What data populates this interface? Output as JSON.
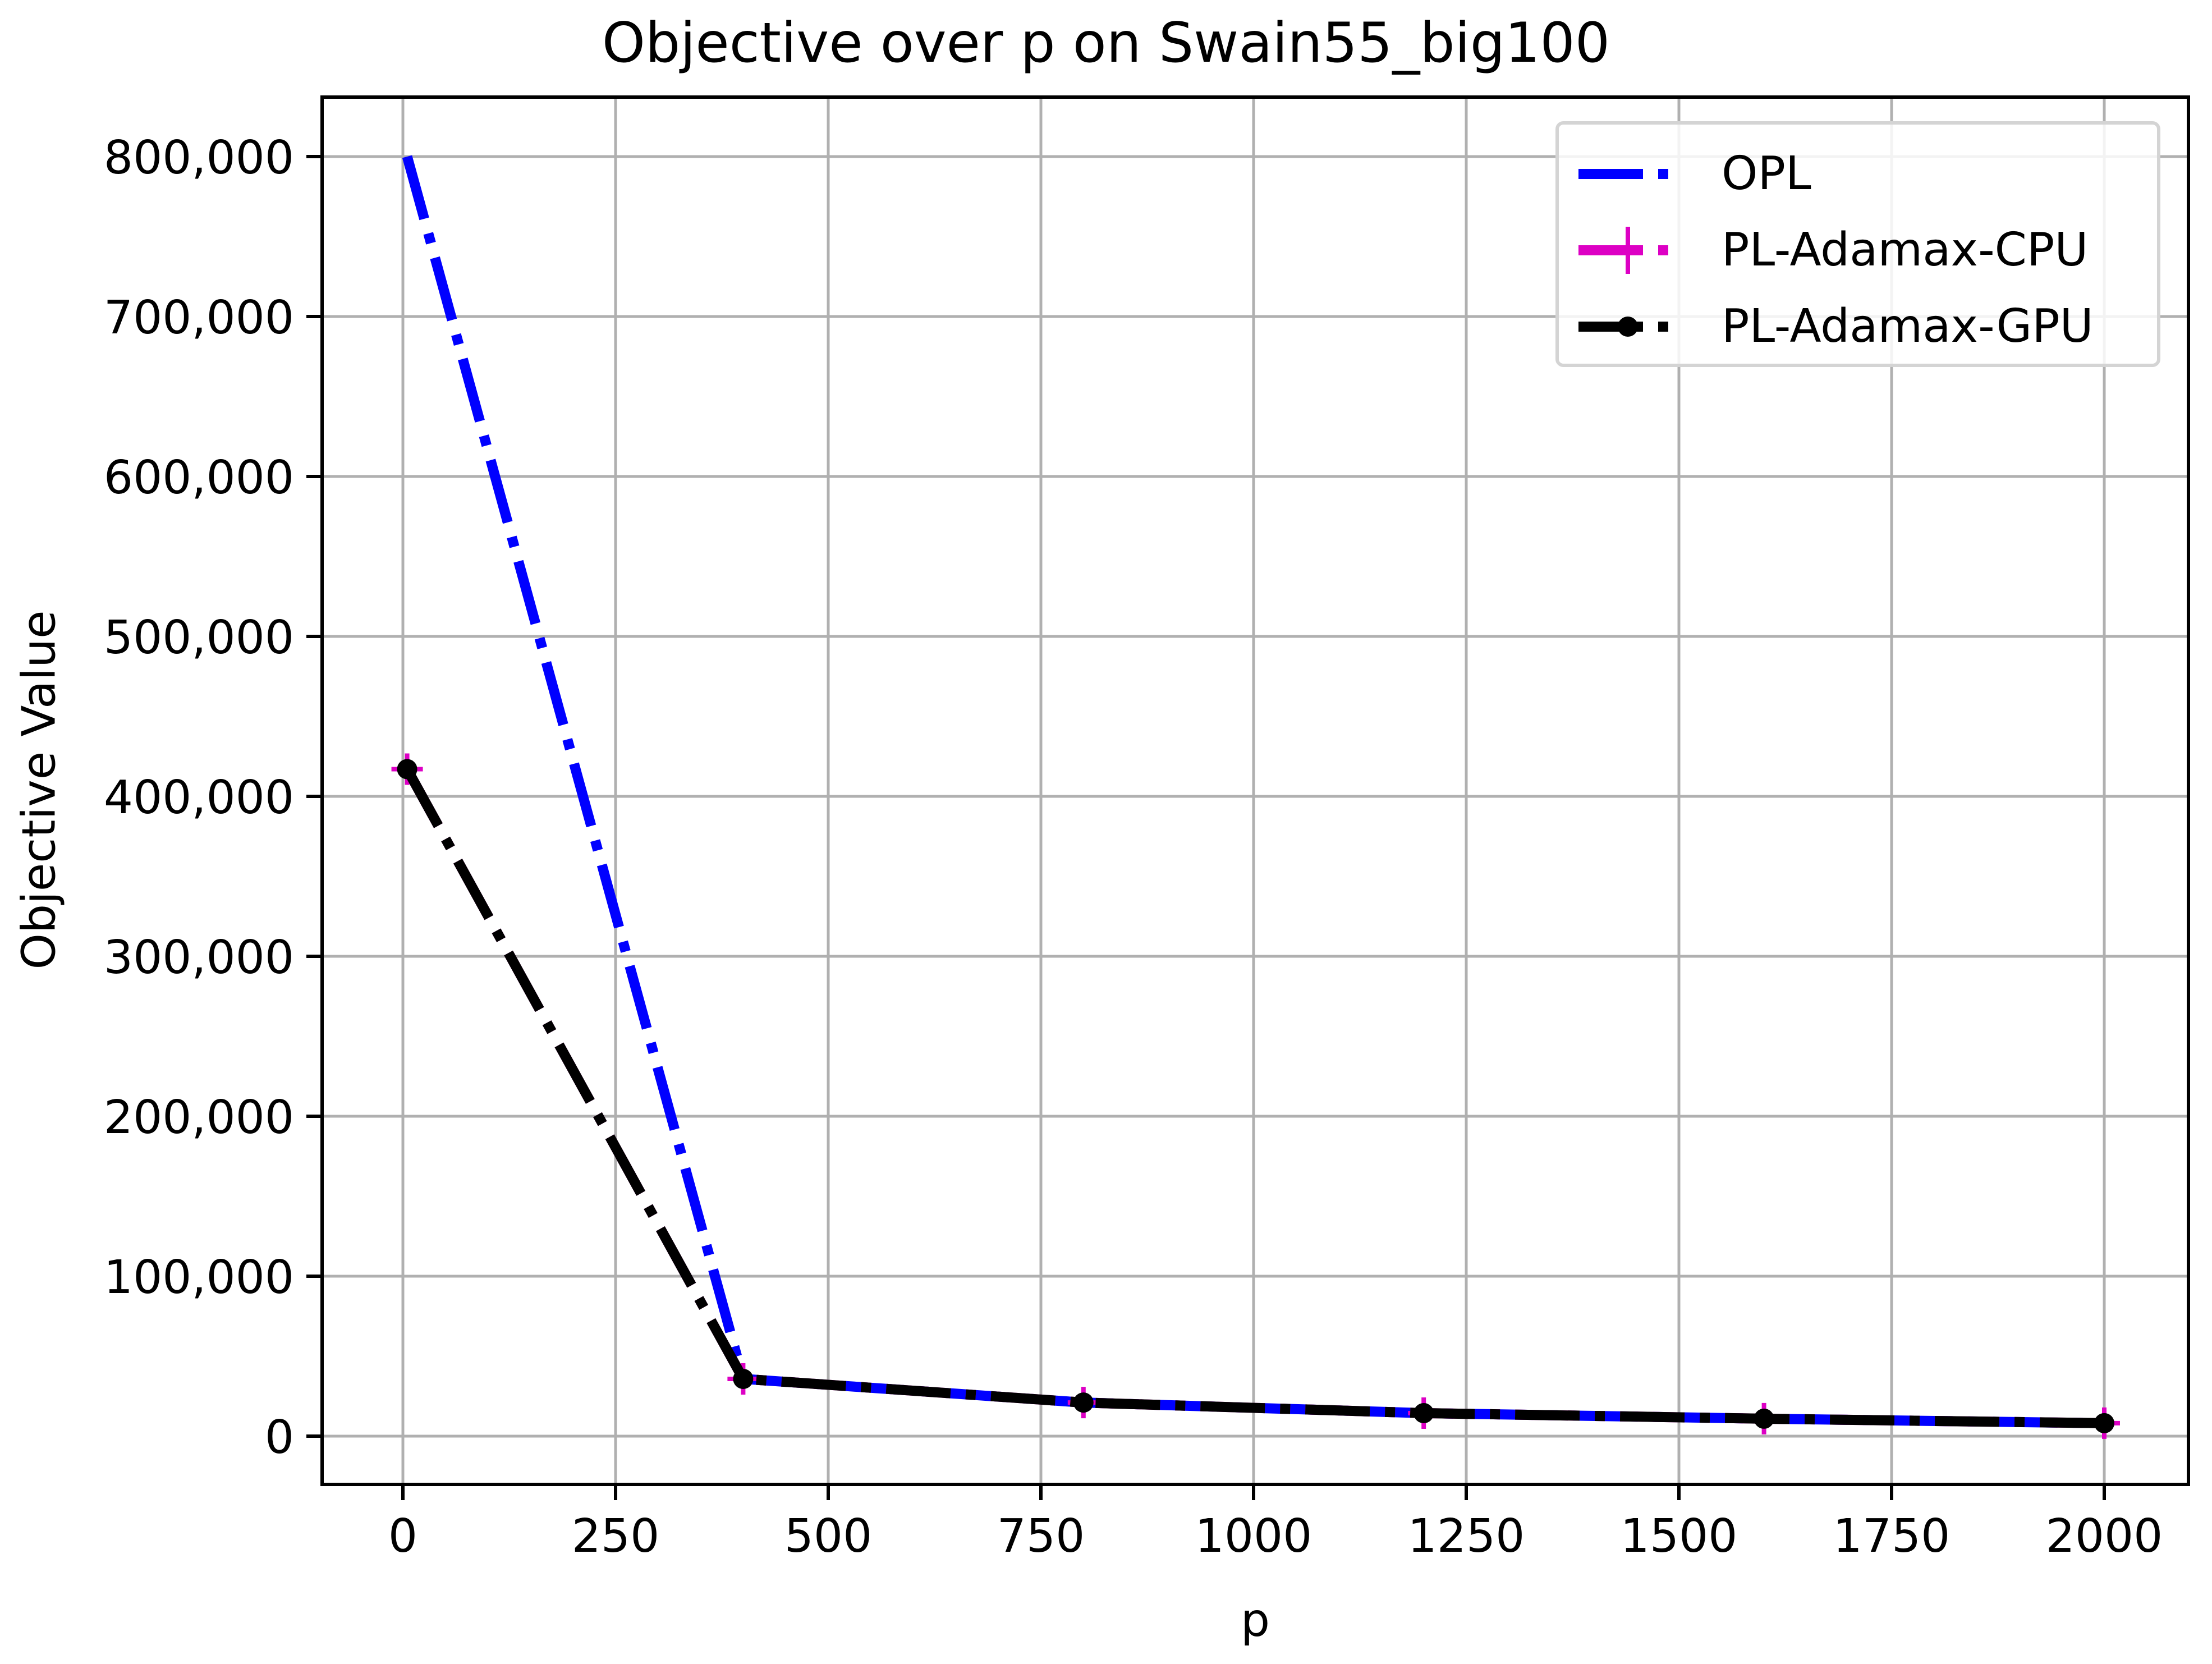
{
  "title": "Objective over p on Swain55_big100",
  "xlabel": "p",
  "ylabel": "Objective Value",
  "legend": [
    {
      "label": "OPL",
      "color": "#0000ff",
      "style": "dashdot",
      "marker": "none"
    },
    {
      "label": "PL-Adamax-CPU",
      "color": "#dd00c4",
      "style": "dashdot",
      "marker": "plus"
    },
    {
      "label": "PL-Adamax-GPU",
      "color": "#000000",
      "style": "dashdot",
      "marker": "circle"
    }
  ],
  "chart_data": {
    "type": "line",
    "title": "Objective over p on Swain55_big100",
    "xlabel": "p",
    "ylabel": "Objective Value",
    "x": [
      5,
      400,
      800,
      1200,
      1600,
      2000
    ],
    "series": [
      {
        "name": "OPL",
        "values": [
          800000,
          35800,
          21000,
          14400,
          10900,
          8100
        ]
      },
      {
        "name": "PL-Adamax-CPU",
        "values": [
          417000,
          35800,
          21000,
          14400,
          10900,
          8100
        ]
      },
      {
        "name": "PL-Adamax-GPU",
        "values": [
          417000,
          35800,
          21000,
          14400,
          10900,
          8100
        ]
      }
    ],
    "xticks": [
      "0",
      "250",
      "500",
      "750",
      "1000",
      "1250",
      "1500",
      "1750",
      "2000"
    ],
    "yticks": [
      "0",
      "100,000",
      "200,000",
      "300,000",
      "400,000",
      "500,000",
      "600,000",
      "700,000",
      "800,000"
    ],
    "xlim": [
      -95,
      2105
    ],
    "ylim": [
      -30000,
      840000
    ],
    "grid": true,
    "legend_position": "upper right"
  }
}
